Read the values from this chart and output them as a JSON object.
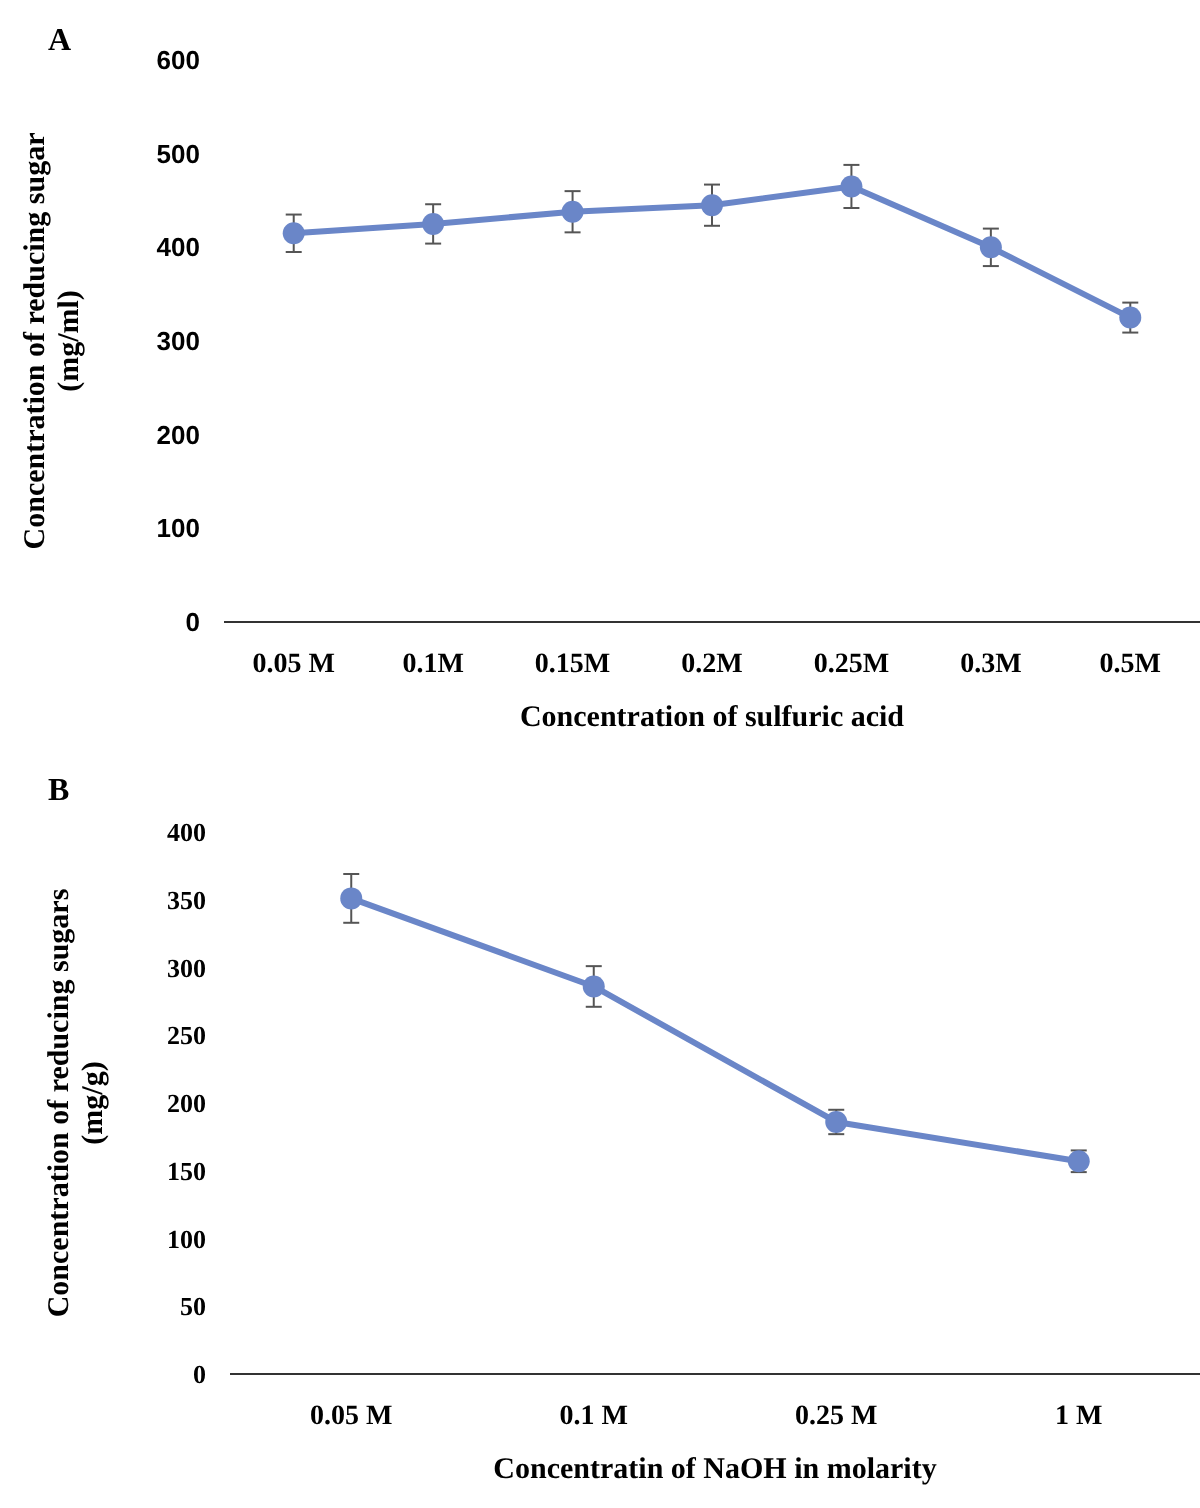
{
  "chart_data": [
    {
      "type": "line",
      "title": "A",
      "xlabel": "Concentration of sulfuric acid",
      "ylabel": "Concentration of reducing sugar\n(mg/ml)",
      "categories": [
        "0.05 M",
        "0.1M",
        "0.15M",
        "0.2M",
        "0.25M",
        "0.3M",
        "0.5M"
      ],
      "series": [
        {
          "color": "#6a86c8",
          "values": [
            415,
            425,
            438,
            445,
            465,
            400,
            325
          ],
          "errors": [
            20,
            21,
            22,
            22,
            23,
            20,
            16
          ]
        }
      ],
      "ylim": [
        0,
        600
      ],
      "yticks": [
        0,
        100,
        200,
        300,
        400,
        500,
        600
      ],
      "grid": false,
      "marker": "circle",
      "line_style": "solid"
    },
    {
      "type": "line",
      "title": "B",
      "xlabel": "Concentratin of NaOH in molarity",
      "ylabel": "Concentration of reducing sugars\n(mg/g)",
      "categories": [
        "0.05 M",
        "0.1 M",
        "0.25 M",
        "1 M"
      ],
      "series": [
        {
          "color": "#6a86c8",
          "values": [
            351,
            286,
            186,
            157
          ],
          "errors": [
            18,
            15,
            9,
            8
          ]
        }
      ],
      "ylim": [
        0,
        400
      ],
      "yticks": [
        0,
        50,
        100,
        150,
        200,
        250,
        300,
        350,
        400
      ],
      "grid": false,
      "marker": "circle",
      "line_style": "solid"
    }
  ]
}
